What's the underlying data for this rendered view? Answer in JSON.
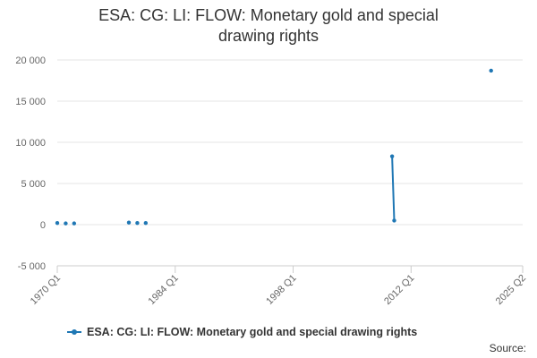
{
  "chart_data": {
    "type": "line",
    "title": "ESA: CG: LI: FLOW: Monetary gold and special drawing rights",
    "xlabel": "",
    "ylabel": "",
    "x_tick_labels": [
      "1970 Q1",
      "1984 Q1",
      "1998 Q1",
      "2012 Q1",
      "2025 Q2"
    ],
    "x_ticks": [
      1970.0,
      1984.0,
      1998.0,
      2012.0,
      2025.25
    ],
    "xlim": [
      1970.0,
      2025.25
    ],
    "y_tick_labels": [
      "-5 000",
      "0",
      "5 000",
      "10 000",
      "15 000",
      "20 000"
    ],
    "y_ticks": [
      -5000,
      0,
      5000,
      10000,
      15000,
      20000
    ],
    "ylim": [
      -5000,
      20000
    ],
    "grid": true,
    "legend_position": "bottom",
    "series": [
      {
        "name": "ESA: CG: LI: FLOW: Monetary gold and special drawing rights",
        "color": "#1f77b4",
        "segments": [
          [
            [
              1970.0,
              200
            ]
          ],
          [
            [
              1971.0,
              150
            ]
          ],
          [
            [
              1972.0,
              150
            ]
          ],
          [
            [
              1978.5,
              250
            ]
          ],
          [
            [
              1979.5,
              200
            ]
          ],
          [
            [
              1980.5,
              200
            ]
          ],
          [
            [
              2009.75,
              8300
            ],
            [
              2010.0,
              500
            ]
          ],
          [
            [
              2021.5,
              18700
            ]
          ]
        ]
      }
    ]
  },
  "source_label": "Source:"
}
